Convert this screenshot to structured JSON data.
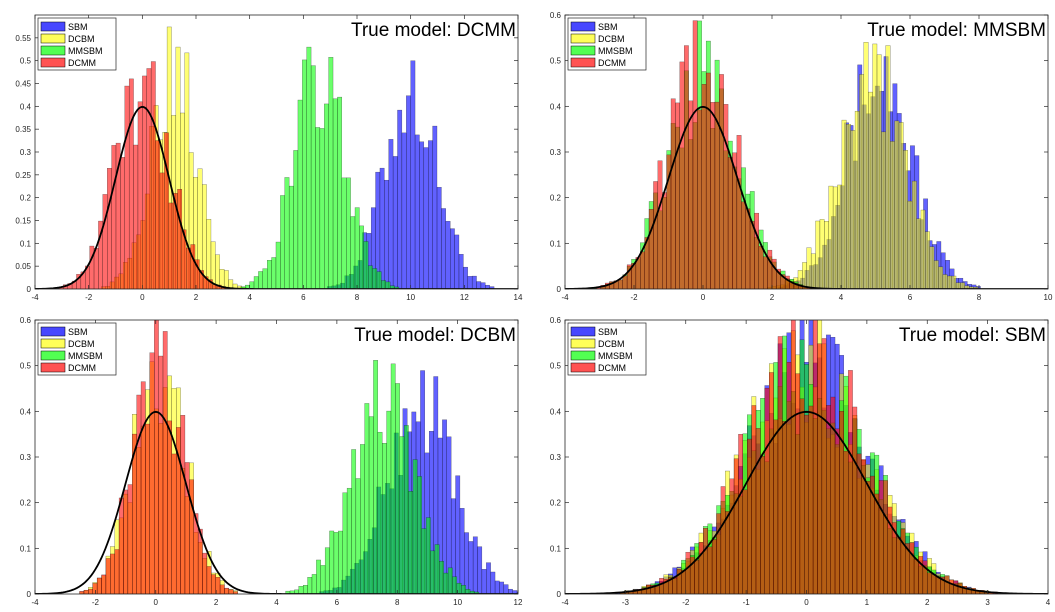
{
  "legend_labels": [
    "SBM",
    "DCBM",
    "MMSBM",
    "DCMM"
  ],
  "colors": {
    "SBM": "#0000ff",
    "DCBM": "#ffff00",
    "MMSBM": "#00ff00",
    "DCMM": "#ff0000",
    "normal_curve": "#000000"
  },
  "chart_data": [
    {
      "type": "histogram",
      "title": "True model: DCMM",
      "xlim": [
        -4,
        14
      ],
      "ylim": [
        0,
        0.6
      ],
      "xticks": [
        -4,
        -2,
        0,
        2,
        4,
        6,
        8,
        10,
        12,
        14
      ],
      "yticks": [
        0,
        0.05,
        0.1,
        0.15,
        0.2,
        0.25,
        0.3,
        0.35,
        0.4,
        0.45,
        0.5,
        0.55
      ],
      "ytick_labels": [
        "0",
        "0.05",
        "0.1",
        "0.15",
        "0.2",
        "0.25",
        "0.3",
        "0.35",
        "0.4",
        "0.45",
        "0.5",
        "0.55"
      ],
      "legend_position": "top-left",
      "series": [
        {
          "name": "SBM",
          "mean": 10.0,
          "sd": 1.0,
          "peak": 0.43
        },
        {
          "name": "DCBM",
          "mean": 1.2,
          "sd": 0.85,
          "peak": 0.52
        },
        {
          "name": "MMSBM",
          "mean": 6.6,
          "sd": 0.95,
          "peak": 0.47
        },
        {
          "name": "DCMM",
          "mean": 0.0,
          "sd": 1.0,
          "peak": 0.45
        }
      ],
      "reference_curve": {
        "type": "standard_normal",
        "peak": 0.3989
      }
    },
    {
      "type": "histogram",
      "title": "True model: MMSBM",
      "xlim": [
        -4,
        10
      ],
      "ylim": [
        0,
        0.6
      ],
      "xticks": [
        -4,
        -2,
        0,
        2,
        4,
        6,
        8,
        10
      ],
      "yticks": [
        0,
        0.1,
        0.2,
        0.3,
        0.4,
        0.5,
        0.6
      ],
      "ytick_labels": [
        "0",
        "0.1",
        "0.2",
        "0.3",
        "0.4",
        "0.5",
        "0.6"
      ],
      "legend_position": "top-left",
      "series": [
        {
          "name": "SBM",
          "mean": 5.1,
          "sd": 0.95,
          "peak": 0.47
        },
        {
          "name": "DCBM",
          "mean": 4.9,
          "sd": 0.95,
          "peak": 0.5
        },
        {
          "name": "MMSBM",
          "mean": 0.0,
          "sd": 1.0,
          "peak": 0.48
        },
        {
          "name": "DCMM",
          "mean": 0.0,
          "sd": 1.0,
          "peak": 0.48
        }
      ],
      "reference_curve": {
        "type": "standard_normal",
        "peak": 0.3989
      }
    },
    {
      "type": "histogram",
      "title": "True model: DCBM",
      "xlim": [
        -4,
        12
      ],
      "ylim": [
        0,
        0.6
      ],
      "xticks": [
        -4,
        -2,
        0,
        2,
        4,
        6,
        8,
        10,
        12
      ],
      "yticks": [
        0,
        0.1,
        0.2,
        0.3,
        0.4,
        0.5,
        0.6
      ],
      "ytick_labels": [
        "0",
        "0.1",
        "0.2",
        "0.3",
        "0.4",
        "0.5",
        "0.6"
      ],
      "legend_position": "top-left",
      "series": [
        {
          "name": "SBM",
          "mean": 8.8,
          "sd": 1.1,
          "peak": 0.42
        },
        {
          "name": "DCBM",
          "mean": 0.1,
          "sd": 0.85,
          "peak": 0.52
        },
        {
          "name": "MMSBM",
          "mean": 7.5,
          "sd": 1.05,
          "peak": 0.45
        },
        {
          "name": "DCMM",
          "mean": 0.1,
          "sd": 0.85,
          "peak": 0.5
        }
      ],
      "reference_curve": {
        "type": "standard_normal",
        "peak": 0.3989
      }
    },
    {
      "type": "histogram",
      "title": "True model: SBM",
      "xlim": [
        -4,
        4
      ],
      "ylim": [
        0,
        0.6
      ],
      "xticks": [
        -4,
        -3,
        -2,
        -1,
        0,
        1,
        2,
        3,
        4
      ],
      "yticks": [
        0,
        0.1,
        0.2,
        0.3,
        0.4,
        0.5,
        0.6
      ],
      "ytick_labels": [
        "0",
        "0.1",
        "0.2",
        "0.3",
        "0.4",
        "0.5",
        "0.6"
      ],
      "legend_position": "top-left",
      "series": [
        {
          "name": "SBM",
          "mean": 0.0,
          "sd": 1.0,
          "peak": 0.5
        },
        {
          "name": "DCBM",
          "mean": 0.0,
          "sd": 1.0,
          "peak": 0.5
        },
        {
          "name": "MMSBM",
          "mean": 0.0,
          "sd": 1.0,
          "peak": 0.48
        },
        {
          "name": "DCMM",
          "mean": 0.0,
          "sd": 1.0,
          "peak": 0.5
        }
      ],
      "reference_curve": {
        "type": "standard_normal",
        "peak": 0.3989
      }
    }
  ]
}
